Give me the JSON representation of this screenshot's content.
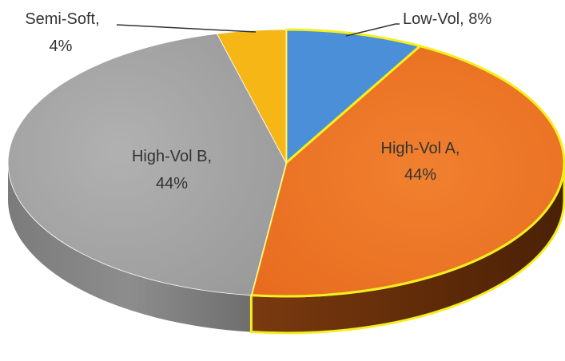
{
  "chart_data": {
    "type": "pie",
    "title": "",
    "slices": [
      {
        "label": "Low-Vol",
        "value": 8,
        "display": "Low-Vol, 8%",
        "color": "#4a8fd8",
        "highlight": true
      },
      {
        "label": "High-Vol A",
        "value": 44,
        "display_line1": "High-Vol A,",
        "display_line2": "44%",
        "color": "#ee7726",
        "highlight": true
      },
      {
        "label": "High-Vol B",
        "value": 44,
        "display_line1": "High-Vol B,",
        "display_line2": "44%",
        "color": "#a5a5a5",
        "highlight": false
      },
      {
        "label": "Semi-Soft",
        "value": 4,
        "display_line1": "Semi-Soft,",
        "display_line2": "4%",
        "color": "#f5b616",
        "highlight": false
      }
    ],
    "highlight_outline_color": "#f4ef1e",
    "style": "3d"
  }
}
